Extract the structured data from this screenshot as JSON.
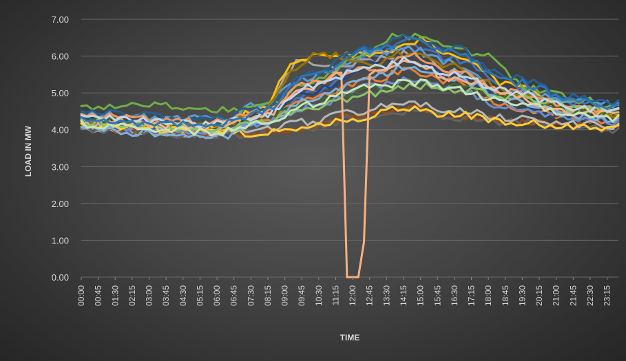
{
  "chart_data": {
    "type": "line",
    "xlabel": "TIME",
    "ylabel": "LOAD IN MW",
    "ylim": [
      0,
      7
    ],
    "yticks": [
      "0.00",
      "1.00",
      "2.00",
      "3.00",
      "4.00",
      "5.00",
      "6.00",
      "7.00"
    ],
    "xtick_labels": [
      "00:00",
      "00:45",
      "01:30",
      "02:15",
      "03:00",
      "03:45",
      "04:30",
      "05:15",
      "06:00",
      "06:45",
      "07:30",
      "08:15",
      "09:00",
      "09:45",
      "10:30",
      "11:15",
      "12:00",
      "12:45",
      "13:30",
      "14:15",
      "15:00",
      "15:45",
      "16:30",
      "17:15",
      "18:00",
      "18:45",
      "19:30",
      "20:15",
      "21:00",
      "21:45",
      "22:30",
      "23:15"
    ],
    "x_interval_minutes": 15,
    "grid": true,
    "legend": "none",
    "series": [
      {
        "color": "#4472c4",
        "base": 4.05,
        "peak": 6.3,
        "shape": "bell",
        "anchors": [
          [
            0,
            4.05
          ],
          [
            24,
            3.95
          ],
          [
            32,
            4.2
          ],
          [
            40,
            5.0
          ],
          [
            52,
            6.05
          ],
          [
            58,
            6.3
          ],
          [
            66,
            5.9
          ],
          [
            76,
            5.1
          ],
          [
            88,
            4.7
          ],
          [
            95,
            4.6
          ]
        ]
      },
      {
        "color": "#ed7d31",
        "base": 4.1,
        "peak": 5.6,
        "shape": "bell",
        "anchors": [
          [
            0,
            4.15
          ],
          [
            24,
            4.0
          ],
          [
            32,
            4.3
          ],
          [
            40,
            4.8
          ],
          [
            52,
            5.4
          ],
          [
            58,
            5.6
          ],
          [
            66,
            5.3
          ],
          [
            76,
            4.6
          ],
          [
            88,
            4.3
          ],
          [
            95,
            4.2
          ]
        ]
      },
      {
        "color": "#a5a5a5",
        "base": 4.0,
        "peak": 6.1,
        "shape": "bell",
        "anchors": [
          [
            0,
            4.0
          ],
          [
            24,
            3.9
          ],
          [
            32,
            4.4
          ],
          [
            38,
            5.8
          ],
          [
            44,
            5.7
          ],
          [
            52,
            5.9
          ],
          [
            58,
            6.1
          ],
          [
            66,
            5.6
          ],
          [
            76,
            4.8
          ],
          [
            88,
            4.4
          ],
          [
            95,
            4.3
          ]
        ]
      },
      {
        "color": "#ffc000",
        "base": 4.1,
        "peak": 6.4,
        "shape": "bell",
        "anchors": [
          [
            0,
            4.2
          ],
          [
            24,
            4.0
          ],
          [
            32,
            4.6
          ],
          [
            38,
            5.9
          ],
          [
            42,
            6.1
          ],
          [
            52,
            6.0
          ],
          [
            60,
            6.4
          ],
          [
            68,
            5.9
          ],
          [
            76,
            5.2
          ],
          [
            88,
            4.6
          ],
          [
            95,
            4.4
          ]
        ]
      },
      {
        "color": "#5b9bd5",
        "base": 4.3,
        "peak": 6.2,
        "shape": "bell",
        "anchors": [
          [
            0,
            4.4
          ],
          [
            24,
            4.3
          ],
          [
            32,
            4.7
          ],
          [
            40,
            5.4
          ],
          [
            52,
            6.1
          ],
          [
            58,
            6.2
          ],
          [
            66,
            5.8
          ],
          [
            76,
            5.0
          ],
          [
            88,
            4.8
          ],
          [
            95,
            4.7
          ]
        ]
      },
      {
        "color": "#70ad47",
        "base": 4.6,
        "peak": 6.6,
        "shape": "bell",
        "anchors": [
          [
            0,
            4.6
          ],
          [
            10,
            4.7
          ],
          [
            24,
            4.55
          ],
          [
            32,
            4.6
          ],
          [
            40,
            5.3
          ],
          [
            52,
            6.2
          ],
          [
            56,
            6.6
          ],
          [
            62,
            6.4
          ],
          [
            70,
            6.1
          ],
          [
            80,
            5.1
          ],
          [
            88,
            4.8
          ],
          [
            95,
            4.65
          ]
        ]
      },
      {
        "color": "#264478",
        "base": 4.2,
        "peak": 6.0,
        "shape": "bell",
        "anchors": [
          [
            0,
            4.25
          ],
          [
            24,
            4.1
          ],
          [
            32,
            4.4
          ],
          [
            40,
            5.0
          ],
          [
            52,
            5.8
          ],
          [
            58,
            6.0
          ],
          [
            66,
            5.5
          ],
          [
            76,
            4.7
          ],
          [
            88,
            4.3
          ],
          [
            95,
            4.2
          ]
        ]
      },
      {
        "color": "#9e480e",
        "base": 4.0,
        "peak": 4.6,
        "shape": "flat",
        "anchors": [
          [
            0,
            4.05
          ],
          [
            24,
            3.9
          ],
          [
            32,
            3.95
          ],
          [
            40,
            4.1
          ],
          [
            48,
            4.4
          ],
          [
            58,
            4.6
          ],
          [
            66,
            4.4
          ],
          [
            76,
            4.2
          ],
          [
            88,
            4.1
          ],
          [
            95,
            4.05
          ]
        ]
      },
      {
        "color": "#636363",
        "base": 4.0,
        "peak": 4.5,
        "shape": "flat",
        "anchors": [
          [
            0,
            4.0
          ],
          [
            24,
            3.85
          ],
          [
            32,
            3.9
          ],
          [
            40,
            4.05
          ],
          [
            48,
            4.3
          ],
          [
            58,
            4.5
          ],
          [
            66,
            4.35
          ],
          [
            76,
            4.2
          ],
          [
            88,
            4.05
          ],
          [
            95,
            4.0
          ]
        ]
      },
      {
        "color": "#997300",
        "base": 4.2,
        "peak": 6.1,
        "shape": "bell",
        "anchors": [
          [
            0,
            4.2
          ],
          [
            24,
            4.1
          ],
          [
            32,
            4.5
          ],
          [
            38,
            5.6
          ],
          [
            42,
            6.05
          ],
          [
            52,
            5.8
          ],
          [
            58,
            6.1
          ],
          [
            66,
            5.7
          ],
          [
            76,
            5.0
          ],
          [
            88,
            4.5
          ],
          [
            95,
            4.3
          ]
        ]
      },
      {
        "color": "#255e91",
        "base": 4.4,
        "peak": 6.5,
        "shape": "bell",
        "anchors": [
          [
            0,
            4.45
          ],
          [
            24,
            4.3
          ],
          [
            32,
            4.6
          ],
          [
            40,
            5.5
          ],
          [
            52,
            6.3
          ],
          [
            58,
            6.5
          ],
          [
            66,
            6.2
          ],
          [
            76,
            5.4
          ],
          [
            88,
            4.9
          ],
          [
            95,
            4.75
          ]
        ]
      },
      {
        "color": "#43682b",
        "base": 4.3,
        "peak": 5.3,
        "shape": "mid",
        "anchors": [
          [
            0,
            4.3
          ],
          [
            24,
            4.1
          ],
          [
            32,
            4.3
          ],
          [
            40,
            4.7
          ],
          [
            52,
            5.1
          ],
          [
            58,
            5.3
          ],
          [
            66,
            5.2
          ],
          [
            76,
            4.9
          ],
          [
            88,
            4.5
          ],
          [
            95,
            4.4
          ]
        ]
      },
      {
        "color": "#698ed0",
        "base": 4.1,
        "peak": 5.4,
        "shape": "mid",
        "anchors": [
          [
            0,
            4.1
          ],
          [
            24,
            3.95
          ],
          [
            32,
            4.2
          ],
          [
            40,
            4.6
          ],
          [
            52,
            5.2
          ],
          [
            58,
            5.4
          ],
          [
            66,
            5.1
          ],
          [
            76,
            4.6
          ],
          [
            88,
            4.3
          ],
          [
            95,
            4.2
          ]
        ]
      },
      {
        "color": "#f1975a",
        "base": 4.3,
        "peak": 6.0,
        "shape": "bell",
        "anchors": [
          [
            0,
            4.35
          ],
          [
            24,
            4.2
          ],
          [
            32,
            4.5
          ],
          [
            40,
            5.3
          ],
          [
            48,
            5.6
          ],
          [
            52,
            5.6
          ],
          [
            58,
            6.0
          ],
          [
            66,
            5.6
          ],
          [
            76,
            5.0
          ],
          [
            88,
            4.6
          ],
          [
            95,
            4.5
          ]
        ]
      },
      {
        "color": "#b7b7b7",
        "base": 4.1,
        "peak": 4.7,
        "shape": "flat",
        "anchors": [
          [
            0,
            4.1
          ],
          [
            24,
            4.0
          ],
          [
            32,
            4.0
          ],
          [
            40,
            4.2
          ],
          [
            48,
            4.5
          ],
          [
            58,
            4.7
          ],
          [
            66,
            4.5
          ],
          [
            76,
            4.3
          ],
          [
            88,
            4.15
          ],
          [
            95,
            4.1
          ]
        ]
      },
      {
        "color": "#ffcd33",
        "base": 4.1,
        "peak": 4.6,
        "shape": "flat",
        "anchors": [
          [
            0,
            4.1
          ],
          [
            24,
            3.95
          ],
          [
            32,
            3.9
          ],
          [
            40,
            4.1
          ],
          [
            48,
            4.3
          ],
          [
            58,
            4.6
          ],
          [
            66,
            4.4
          ],
          [
            76,
            4.2
          ],
          [
            88,
            4.1
          ],
          [
            95,
            4.05
          ]
        ]
      },
      {
        "color": "#7cafdd",
        "base": 4.0,
        "peak": 5.7,
        "shape": "bell",
        "anchors": [
          [
            0,
            4.0
          ],
          [
            24,
            3.8
          ],
          [
            32,
            4.1
          ],
          [
            40,
            4.8
          ],
          [
            52,
            5.5
          ],
          [
            58,
            5.7
          ],
          [
            66,
            5.4
          ],
          [
            76,
            4.8
          ],
          [
            88,
            4.4
          ],
          [
            95,
            4.3
          ]
        ]
      },
      {
        "color": "#8cc168",
        "base": 4.2,
        "peak": 5.2,
        "shape": "mid",
        "anchors": [
          [
            0,
            4.2
          ],
          [
            24,
            4.05
          ],
          [
            32,
            4.2
          ],
          [
            40,
            4.6
          ],
          [
            52,
            5.0
          ],
          [
            58,
            5.2
          ],
          [
            66,
            5.1
          ],
          [
            76,
            4.9
          ],
          [
            88,
            4.6
          ],
          [
            95,
            4.5
          ]
        ]
      },
      {
        "color": "#f4b183",
        "base": 4.2,
        "peak": 5.8,
        "shape": "outage",
        "anchors": [
          [
            0,
            4.25
          ],
          [
            24,
            4.1
          ],
          [
            32,
            4.4
          ],
          [
            40,
            5.1
          ],
          [
            45,
            5.5
          ],
          [
            46,
            5.55
          ],
          [
            47,
            0.0
          ],
          [
            48,
            0.0
          ],
          [
            49,
            0.0
          ],
          [
            50,
            0.95
          ],
          [
            51,
            5.5
          ],
          [
            52,
            5.6
          ],
          [
            58,
            5.8
          ],
          [
            66,
            5.4
          ],
          [
            76,
            4.9
          ],
          [
            88,
            4.5
          ],
          [
            95,
            4.4
          ]
        ]
      },
      {
        "color": "#bdd7ee",
        "base": 4.2,
        "peak": 5.9,
        "shape": "bell",
        "anchors": [
          [
            0,
            4.3
          ],
          [
            24,
            4.15
          ],
          [
            32,
            4.4
          ],
          [
            40,
            5.2
          ],
          [
            52,
            5.7
          ],
          [
            58,
            5.9
          ],
          [
            66,
            5.5
          ],
          [
            76,
            5.0
          ],
          [
            88,
            4.6
          ],
          [
            95,
            4.5
          ]
        ]
      },
      {
        "color": "#c9e4b4",
        "base": 4.1,
        "peak": 5.3,
        "shape": "mid",
        "anchors": [
          [
            0,
            4.15
          ],
          [
            24,
            3.95
          ],
          [
            32,
            4.15
          ],
          [
            40,
            4.7
          ],
          [
            52,
            5.2
          ],
          [
            58,
            5.3
          ],
          [
            66,
            5.1
          ],
          [
            76,
            4.7
          ],
          [
            88,
            4.4
          ],
          [
            95,
            4.3
          ]
        ]
      },
      {
        "color": "#2e75b6",
        "base": 4.2,
        "peak": 6.4,
        "shape": "bell",
        "anchors": [
          [
            0,
            4.25
          ],
          [
            24,
            4.1
          ],
          [
            32,
            4.5
          ],
          [
            40,
            5.4
          ],
          [
            52,
            6.2
          ],
          [
            58,
            6.4
          ],
          [
            66,
            6.1
          ],
          [
            76,
            5.3
          ],
          [
            88,
            4.8
          ],
          [
            95,
            4.6
          ]
        ]
      }
    ]
  }
}
